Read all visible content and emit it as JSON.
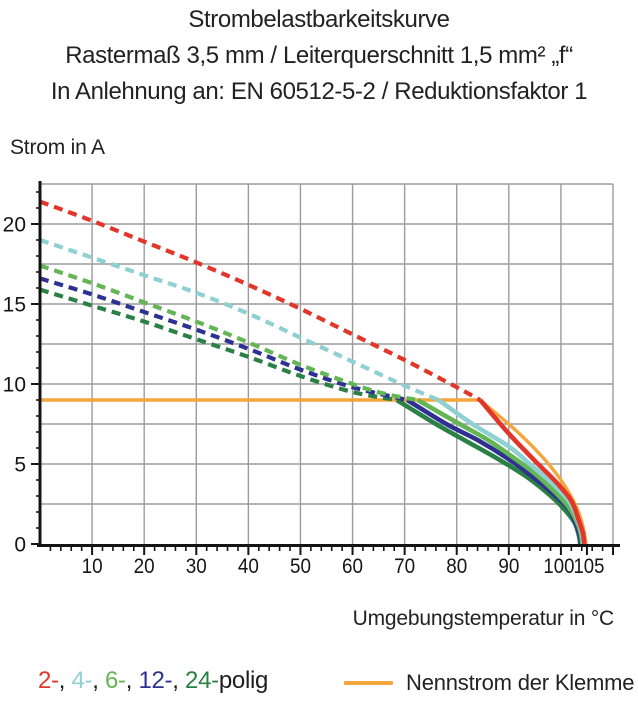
{
  "title": {
    "line1": "Strombelastbarkeitskurve",
    "line2": "Rastermaß 3,5 mm / Leiterquerschnitt 1,5 mm² „f“",
    "line3": "In Anlehnung an: EN 60512-5-2 / Reduktionsfaktor 1"
  },
  "chart_data": {
    "type": "line",
    "title": "Strombelastbarkeitskurve",
    "xlabel": "Umgebungstemperatur in °C",
    "ylabel": "Strom in A",
    "xlim": [
      0,
      110
    ],
    "ylim": [
      0,
      22.5
    ],
    "x_ticks": [
      10,
      20,
      30,
      40,
      50,
      60,
      70,
      80,
      90,
      100,
      105
    ],
    "y_ticks": [
      0,
      5,
      10,
      15,
      20
    ],
    "x_minor_step": 2,
    "y_minor_step": 1,
    "grid_x_step": 10,
    "grid_y_step": 2.5,
    "grid_on": true,
    "legend_position": "bottom",
    "nominal_current_a": 9,
    "max_temperature_c": 104.5,
    "colors": {
      "grid": "#9c9c9c",
      "axis": "#141414"
    },
    "series": [
      {
        "id": "nennstrom",
        "name": "Nennstrom der Klemme",
        "color": "#f2a63b",
        "segments": [
          {
            "style": "solid",
            "width": 3.4,
            "points": [
              [
                0,
                9
              ],
              [
                84.5,
                9
              ]
            ]
          },
          {
            "style": "solid",
            "width": 3.4,
            "points": [
              [
                84.5,
                9
              ],
              [
                91,
                7.2
              ],
              [
                96,
                5.6
              ],
              [
                100,
                4.0
              ],
              [
                103,
                2.3
              ],
              [
                104.3,
                1.0
              ],
              [
                104.8,
                0
              ]
            ]
          }
        ]
      },
      {
        "id": "24polig",
        "name": "24-polig",
        "color": "#2b8045",
        "segments": [
          {
            "style": "dashed",
            "width": 4.2,
            "points": [
              [
                0,
                15.9
              ],
              [
                10,
                14.9
              ],
              [
                20,
                13.9
              ],
              [
                30,
                12.8
              ],
              [
                40,
                11.7
              ],
              [
                50,
                10.5
              ],
              [
                60,
                9.5
              ],
              [
                68.5,
                9.0
              ]
            ]
          },
          {
            "style": "solid",
            "width": 4.6,
            "points": [
              [
                68.5,
                9.0
              ],
              [
                76,
                7.5
              ],
              [
                82,
                6.4
              ],
              [
                88,
                5.3
              ],
              [
                93,
                4.3
              ],
              [
                97,
                3.3
              ],
              [
                100,
                2.4
              ],
              [
                102.5,
                1.4
              ],
              [
                103.4,
                0.6
              ],
              [
                103.7,
                0
              ]
            ]
          }
        ]
      },
      {
        "id": "12polig",
        "name": "12-polig",
        "color": "#2e3192",
        "segments": [
          {
            "style": "dashed",
            "width": 4.2,
            "points": [
              [
                0,
                16.6
              ],
              [
                10,
                15.6
              ],
              [
                20,
                14.5
              ],
              [
                30,
                13.4
              ],
              [
                40,
                12.2
              ],
              [
                50,
                10.9
              ],
              [
                60,
                9.8
              ],
              [
                70.5,
                9.0
              ]
            ]
          },
          {
            "style": "solid",
            "width": 4.6,
            "points": [
              [
                70.5,
                9.0
              ],
              [
                78,
                7.5
              ],
              [
                84,
                6.5
              ],
              [
                90,
                5.3
              ],
              [
                95,
                4.1
              ],
              [
                99,
                3.0
              ],
              [
                101.5,
                2.2
              ],
              [
                102.7,
                1.4
              ],
              [
                103.6,
                0.6
              ],
              [
                103.9,
                0
              ]
            ]
          }
        ]
      },
      {
        "id": "6polig",
        "name": "6-polig",
        "color": "#64b554",
        "segments": [
          {
            "style": "dashed",
            "width": 4.2,
            "points": [
              [
                0,
                17.4
              ],
              [
                10,
                16.3
              ],
              [
                20,
                15.1
              ],
              [
                30,
                13.9
              ],
              [
                40,
                12.6
              ],
              [
                50,
                11.2
              ],
              [
                60,
                10.0
              ],
              [
                66,
                9.4
              ],
              [
                72.5,
                9.0
              ]
            ]
          },
          {
            "style": "solid",
            "width": 4.6,
            "points": [
              [
                72.5,
                9.0
              ],
              [
                80,
                7.6
              ],
              [
                86,
                6.5
              ],
              [
                90,
                5.6
              ],
              [
                95,
                4.4
              ],
              [
                99,
                3.2
              ],
              [
                101.5,
                2.3
              ],
              [
                102.9,
                1.5
              ],
              [
                103.8,
                0.7
              ],
              [
                104.1,
                0
              ]
            ]
          }
        ]
      },
      {
        "id": "4polig",
        "name": "4-polig",
        "color": "#8fd0d2",
        "segments": [
          {
            "style": "dashed",
            "width": 4.2,
            "points": [
              [
                0,
                19.0
              ],
              [
                10,
                17.9
              ],
              [
                20,
                16.8
              ],
              [
                30,
                15.7
              ],
              [
                40,
                14.4
              ],
              [
                50,
                12.9
              ],
              [
                60,
                11.4
              ],
              [
                70,
                9.9
              ],
              [
                76.5,
                9.0
              ]
            ]
          },
          {
            "style": "solid",
            "width": 4.6,
            "points": [
              [
                76.5,
                9.0
              ],
              [
                83,
                7.5
              ],
              [
                90,
                6.1
              ],
              [
                94,
                5.0
              ],
              [
                98,
                3.9
              ],
              [
                101.5,
                2.7
              ],
              [
                103.1,
                1.6
              ],
              [
                104,
                0.7
              ],
              [
                104.3,
                0
              ]
            ]
          }
        ]
      },
      {
        "id": "2polig",
        "name": "2-polig",
        "color": "#e2362a",
        "segments": [
          {
            "style": "dashed",
            "width": 4.2,
            "points": [
              [
                0,
                21.4
              ],
              [
                10,
                20.2
              ],
              [
                20,
                18.9
              ],
              [
                30,
                17.6
              ],
              [
                40,
                16.2
              ],
              [
                50,
                14.7
              ],
              [
                60,
                13.1
              ],
              [
                70,
                11.5
              ],
              [
                80,
                9.8
              ],
              [
                84.5,
                9.0
              ]
            ]
          },
          {
            "style": "solid",
            "width": 4.6,
            "points": [
              [
                84.5,
                9.0
              ],
              [
                90,
                6.9
              ],
              [
                95,
                5.2
              ],
              [
                99,
                3.9
              ],
              [
                102,
                2.7
              ],
              [
                103.3,
                1.6
              ],
              [
                104.2,
                0.7
              ],
              [
                104.5,
                0
              ]
            ]
          }
        ]
      }
    ]
  },
  "legend": {
    "poles": {
      "segments": [
        {
          "text": "2-",
          "color": "#e2362a"
        },
        {
          "text": ", ",
          "color": "#1f1f1f"
        },
        {
          "text": "4-",
          "color": "#8fd0d2"
        },
        {
          "text": ", ",
          "color": "#1f1f1f"
        },
        {
          "text": "6-",
          "color": "#64b554"
        },
        {
          "text": ", ",
          "color": "#1f1f1f"
        },
        {
          "text": "12-",
          "color": "#2e3192"
        },
        {
          "text": ", ",
          "color": "#1f1f1f"
        },
        {
          "text": "24-",
          "color": "#2b8045"
        },
        {
          "text": "polig",
          "color": "#1f1f1f"
        }
      ]
    },
    "nennstrom": {
      "label": "Nennstrom der Klemme",
      "swatch_color": "#f2a63b"
    }
  }
}
